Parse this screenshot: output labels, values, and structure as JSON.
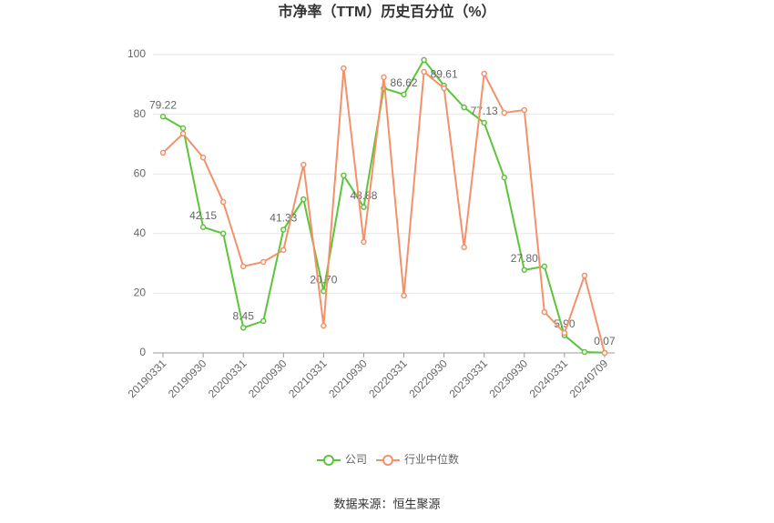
{
  "chart_data": {
    "type": "line",
    "title": "市净率（TTM）历史百分位（%）",
    "categories": [
      "20190331",
      null,
      "20190930",
      null,
      "20200331",
      null,
      "20200930",
      null,
      "20210331",
      null,
      "20210930",
      null,
      "20220331",
      null,
      "20220930",
      null,
      "20230331",
      null,
      "20230930",
      null,
      "20240331",
      null,
      "20240709"
    ],
    "series": [
      {
        "name": "公司",
        "color": "#5cc43a",
        "values": [
          79.22,
          75.3,
          42.15,
          40,
          8.45,
          10.7,
          41.33,
          51.5,
          20.7,
          59.5,
          48.88,
          88.7,
          86.62,
          98.2,
          89.61,
          82.3,
          77.13,
          58.8,
          27.8,
          29,
          5.9,
          0.3,
          0.07
        ],
        "value_labels": [
          "79.22",
          null,
          "42.15",
          null,
          "8.45",
          null,
          "41.33",
          null,
          "20.70",
          null,
          "48.88",
          null,
          "86.62",
          null,
          "89.61",
          null,
          "77.13",
          null,
          "27.80",
          null,
          "5.90",
          null,
          "0.07"
        ]
      },
      {
        "name": "行业中位数",
        "color": "#f4916a",
        "values": [
          67.1,
          73.5,
          65.5,
          50.6,
          29,
          30.5,
          34.5,
          63.1,
          9.1,
          95.4,
          37.2,
          92.4,
          19.2,
          94.2,
          88.7,
          35.4,
          93.6,
          80.5,
          81.4,
          13.7,
          6.7,
          25.9,
          0
        ]
      }
    ],
    "ylim": [
      0,
      100
    ],
    "yticks": [
      0,
      20,
      40,
      60,
      80,
      100
    ],
    "grid": true,
    "legend": "bottom",
    "source": "数据来源：恒生聚源"
  }
}
